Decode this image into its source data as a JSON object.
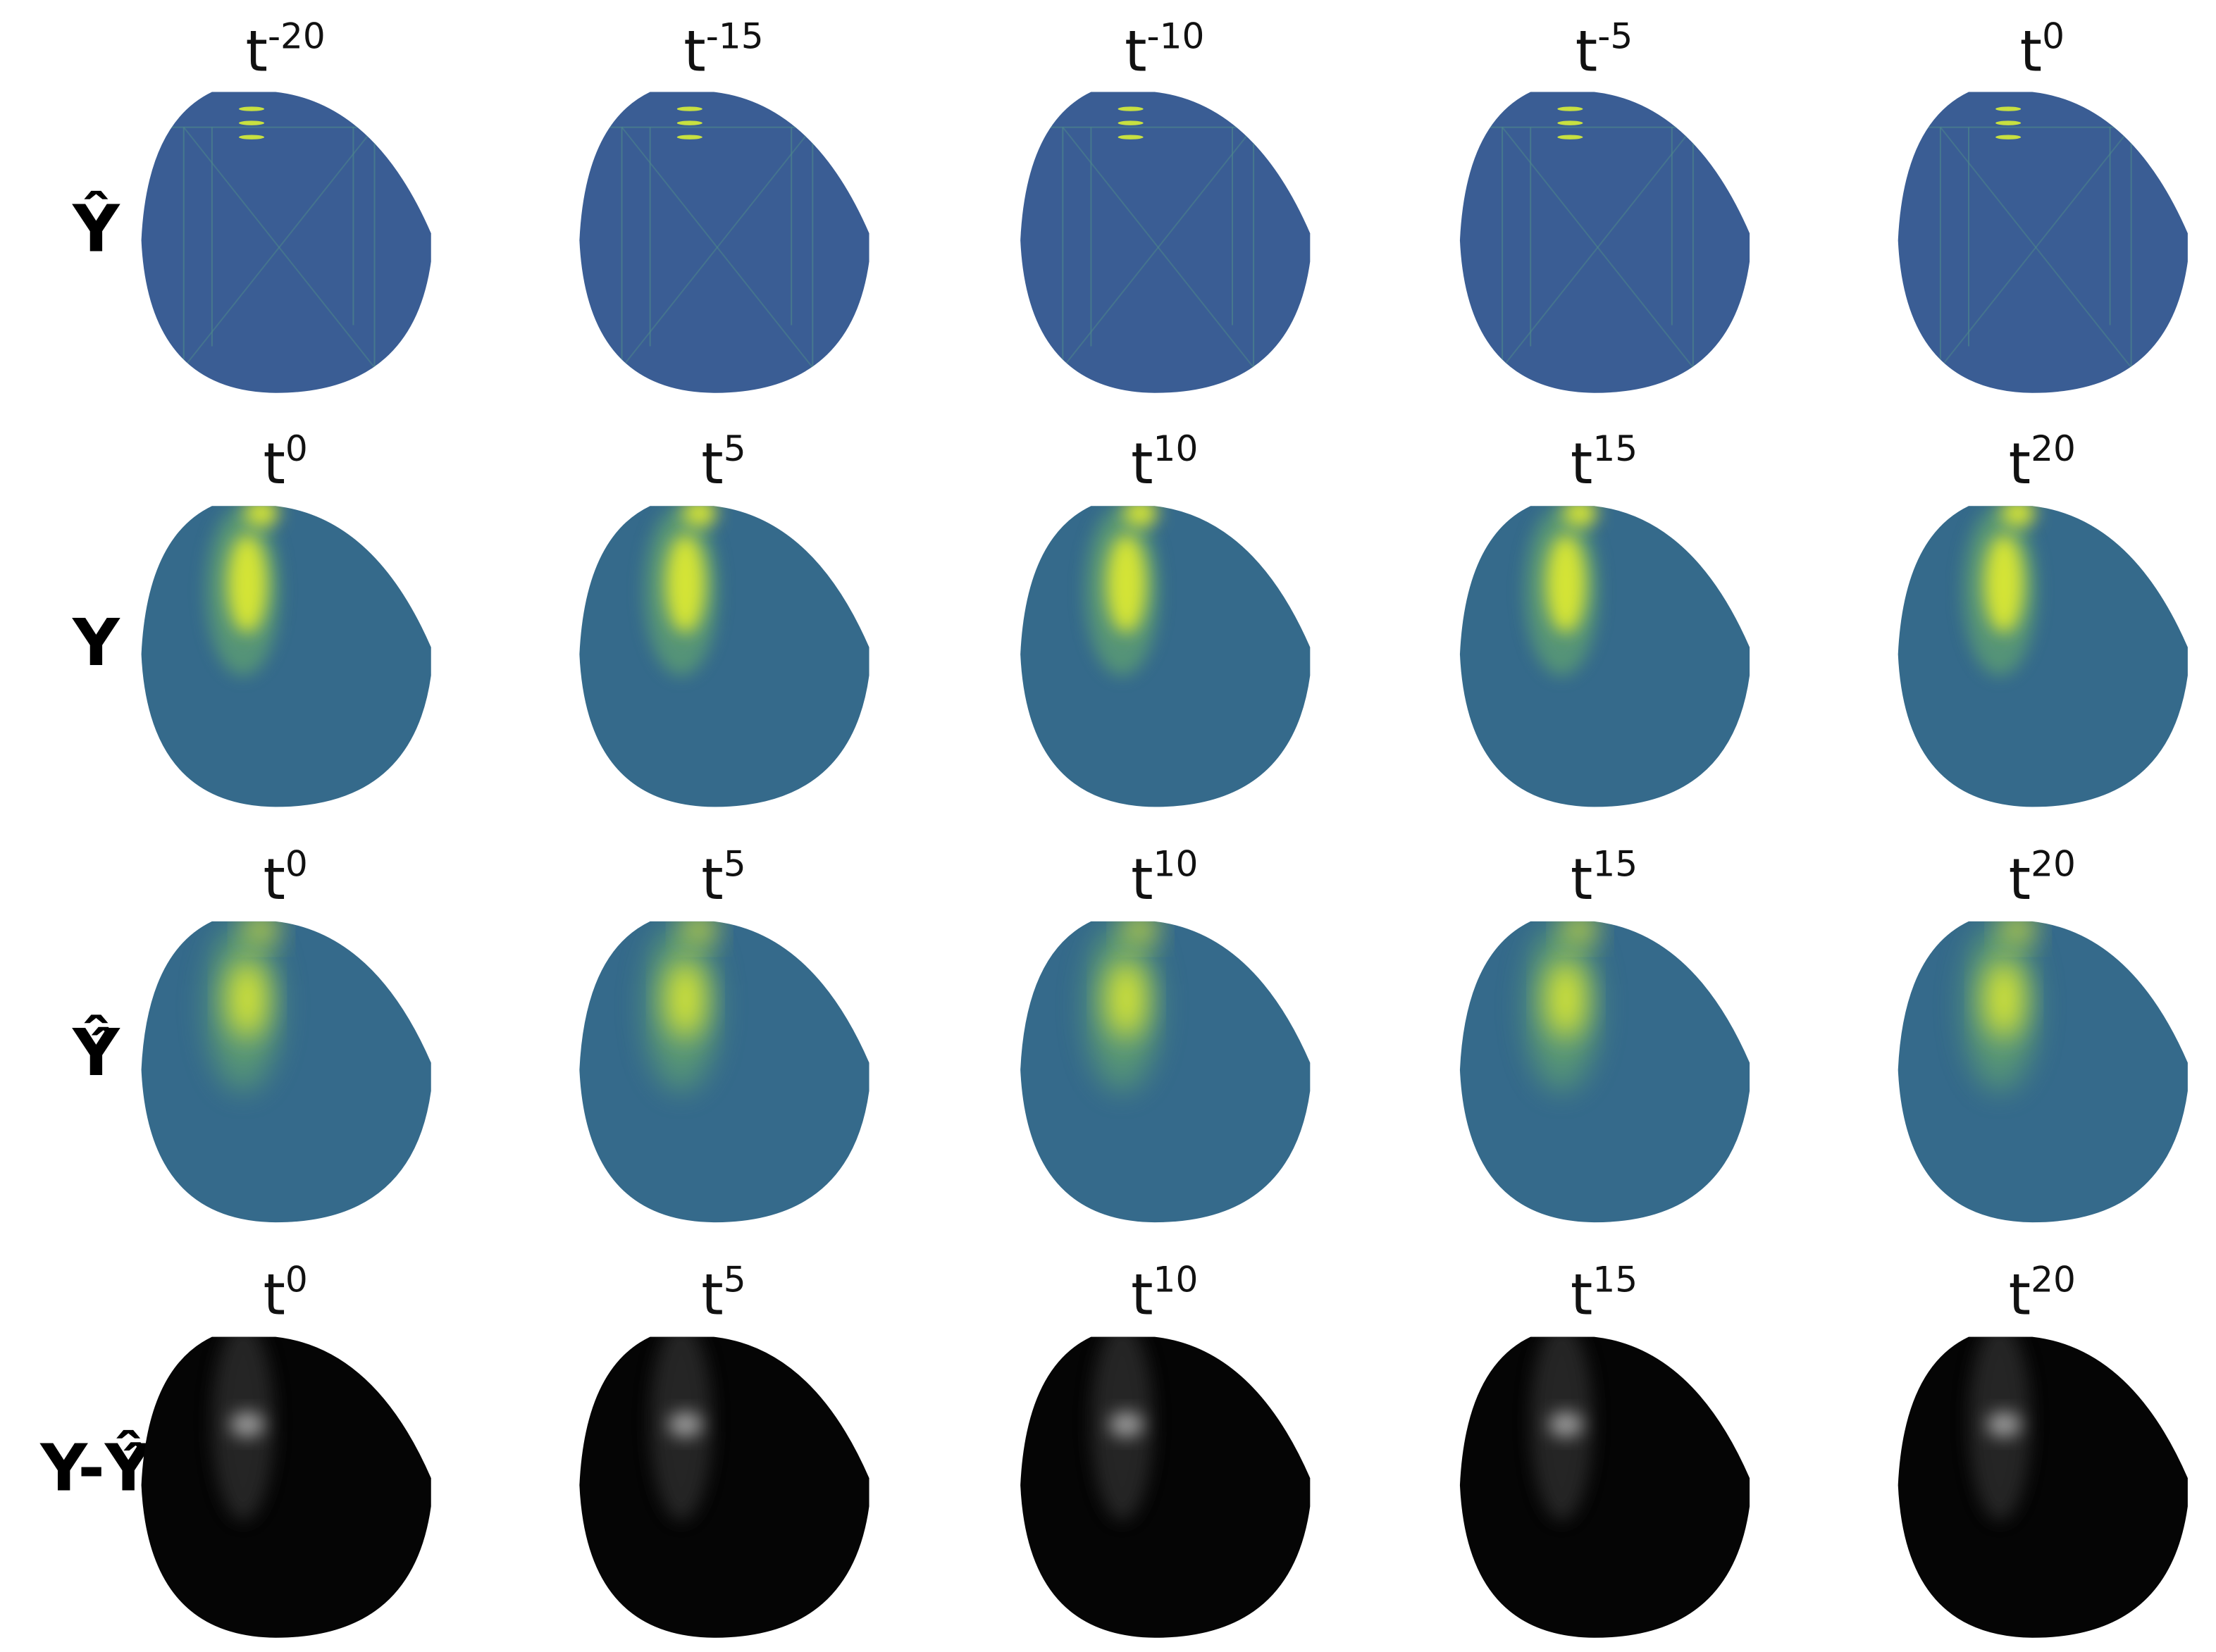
{
  "rows": [
    {
      "label": "Ŷ",
      "times": [
        {
          "base": "t",
          "sup": "-20"
        },
        {
          "base": "t",
          "sup": "-15"
        },
        {
          "base": "t",
          "sup": "-10"
        },
        {
          "base": "t",
          "sup": "-5"
        },
        {
          "base": "t",
          "sup": "0"
        }
      ]
    },
    {
      "label": "Y",
      "times": [
        {
          "base": "t",
          "sup": "0"
        },
        {
          "base": "t",
          "sup": "5"
        },
        {
          "base": "t",
          "sup": "10"
        },
        {
          "base": "t",
          "sup": "15"
        },
        {
          "base": "t",
          "sup": "20"
        }
      ]
    },
    {
      "label": "Ŷ̂",
      "times": [
        {
          "base": "t",
          "sup": "0"
        },
        {
          "base": "t",
          "sup": "5"
        },
        {
          "base": "t",
          "sup": "10"
        },
        {
          "base": "t",
          "sup": "15"
        },
        {
          "base": "t",
          "sup": "20"
        }
      ]
    },
    {
      "label": "Y-Ŷ̂",
      "times": [
        {
          "base": "t",
          "sup": "0"
        },
        {
          "base": "t",
          "sup": "5"
        },
        {
          "base": "t",
          "sup": "10"
        },
        {
          "base": "t",
          "sup": "15"
        },
        {
          "base": "t",
          "sup": "20"
        }
      ]
    }
  ]
}
